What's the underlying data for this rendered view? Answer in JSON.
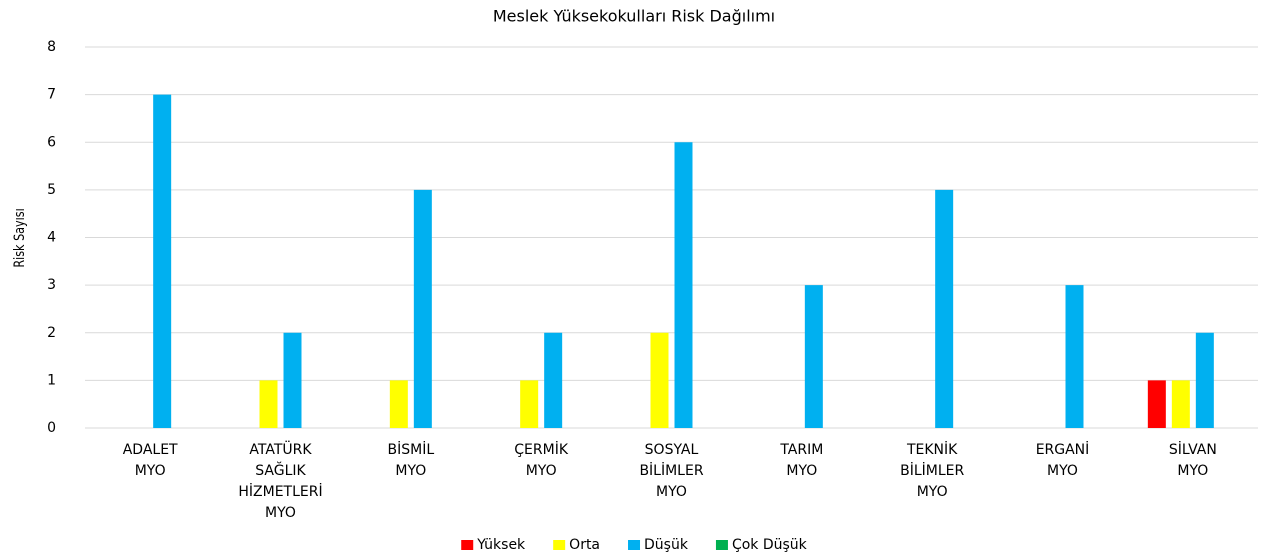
{
  "chart_data": {
    "type": "bar",
    "title": "Meslek Yüksekokulları Risk Dağılımı",
    "y_label": "Risk Sayısı",
    "categories": [
      "ADALET MYO",
      "ATATÜRK SAĞLIK HİZMETLERİ MYO",
      "BİSMİL MYO",
      "ÇERMİK MYO",
      "SOSYAL BİLİMLER MYO",
      "TARIM MYO",
      "TEKNİK BİLİMLER MYO",
      "ERGANİ MYO",
      "SİLVAN MYO"
    ],
    "series": [
      {
        "name": "Yüksek",
        "color": "#ff0000",
        "values": [
          0,
          0,
          0,
          0,
          0,
          0,
          0,
          0,
          1
        ]
      },
      {
        "name": "Orta",
        "color": "#ffff00",
        "values": [
          0,
          1,
          1,
          1,
          2,
          0,
          0,
          0,
          1
        ]
      },
      {
        "name": "Düşük",
        "color": "#00b0f0",
        "values": [
          7,
          2,
          5,
          2,
          6,
          3,
          5,
          3,
          2
        ]
      },
      {
        "name": "Çok Düşük",
        "color": "#00b050",
        "values": [
          0,
          0,
          0,
          0,
          0,
          0,
          0,
          0,
          0
        ]
      }
    ],
    "ylim": [
      0,
      8
    ],
    "yticks": [
      0,
      1,
      2,
      3,
      4,
      5,
      6,
      7,
      8
    ],
    "grid": true,
    "legend": "bottom"
  }
}
